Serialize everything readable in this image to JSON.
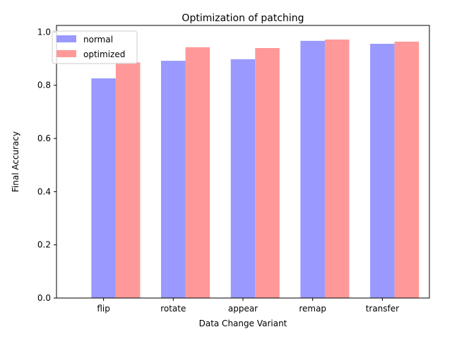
{
  "chart_data": {
    "type": "bar",
    "title": "Optimization of patching",
    "xlabel": "Data Change Variant",
    "ylabel": "Final Accuracy",
    "categories": [
      "flip",
      "rotate",
      "appear",
      "remap",
      "transfer"
    ],
    "series": [
      {
        "name": "normal",
        "color": "#9999ff",
        "values": [
          0.826,
          0.892,
          0.898,
          0.967,
          0.956
        ]
      },
      {
        "name": "optimized",
        "color": "#ff9999",
        "values": [
          0.886,
          0.943,
          0.94,
          0.972,
          0.964
        ]
      }
    ],
    "ylim": [
      0,
      1.025
    ],
    "yticks": [
      0.0,
      0.2,
      0.4,
      0.6,
      0.8,
      1.0
    ],
    "grid": false,
    "legend_position": "top-left"
  }
}
